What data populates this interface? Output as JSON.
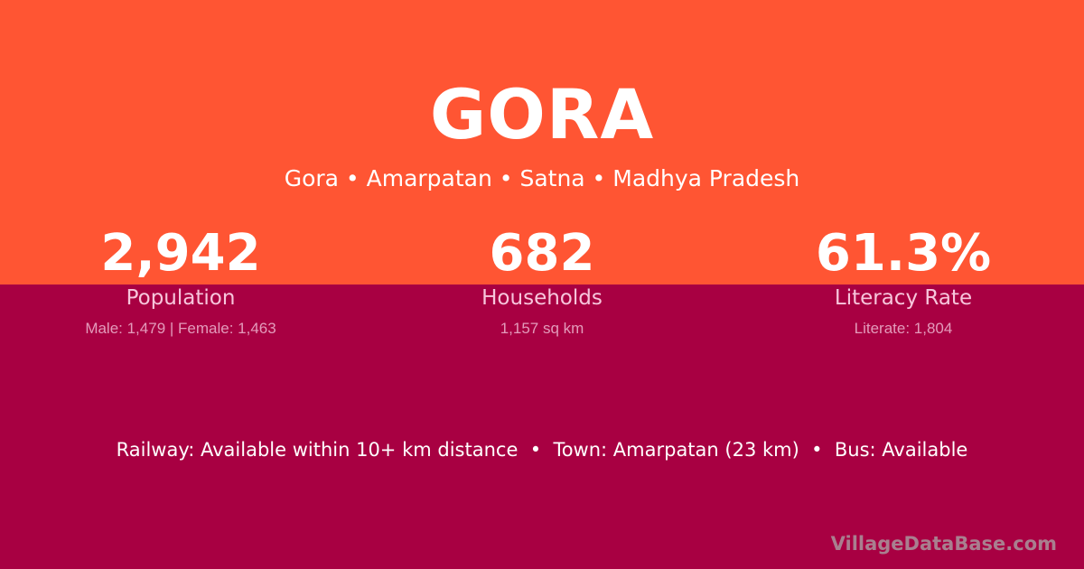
{
  "colors": {
    "top_bg": "#ff5533",
    "bottom_bg": "#a80042"
  },
  "title": "GORA",
  "subtitle": "Gora • Amarpatan • Satna • Madhya Pradesh",
  "stats": [
    {
      "value": "2,942",
      "label": "Population",
      "detail": "Male: 1,479 | Female: 1,463"
    },
    {
      "value": "682",
      "label": "Households",
      "detail": "1,157 sq km"
    },
    {
      "value": "61.3%",
      "label": "Literacy Rate",
      "detail": "Literate: 1,804"
    }
  ],
  "info": "Railway: Available within 10+ km distance  •  Town: Amarpatan (23 km)  •  Bus: Available",
  "brand": "VillageDataBase.com"
}
